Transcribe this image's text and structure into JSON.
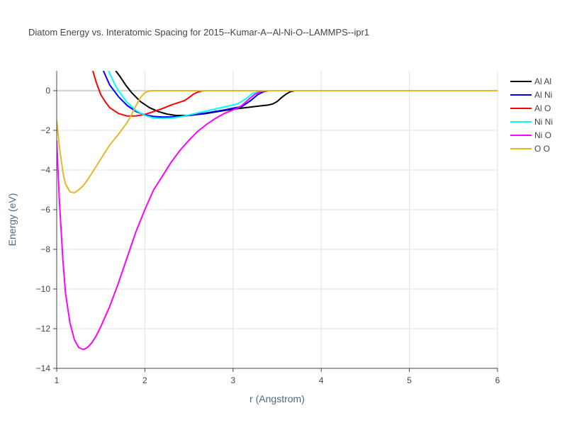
{
  "chart_data": {
    "type": "line",
    "title": "Diatom Energy vs. Interatomic Spacing for 2015--Kumar-A--Al-Ni-O--LAMMPS--ipr1",
    "xlabel": "r (Angstrom)",
    "ylabel": "Energy (eV)",
    "xlim": [
      1,
      6
    ],
    "ylim": [
      -14,
      1
    ],
    "xticks": [
      1,
      2,
      3,
      4,
      5,
      6
    ],
    "yticks": [
      0,
      -2,
      -4,
      -6,
      -8,
      -10,
      -12,
      -14
    ],
    "ytick_labels": [
      "0",
      "−2",
      "−4",
      "−6",
      "−8",
      "−10",
      "−12",
      "−14"
    ],
    "grid": true,
    "legend_position": "right",
    "series": [
      {
        "name": "Al Al",
        "color": "#000000",
        "x": [
          1.67,
          1.72,
          1.78,
          1.85,
          1.95,
          2.05,
          2.15,
          2.25,
          2.35,
          2.5,
          2.7,
          2.9,
          3.1,
          3.3,
          3.4,
          3.45,
          3.5,
          3.55,
          3.6,
          3.65,
          3.7,
          4.0,
          6.0
        ],
        "y": [
          1.0,
          0.7,
          0.3,
          -0.1,
          -0.55,
          -0.85,
          -1.05,
          -1.18,
          -1.25,
          -1.25,
          -1.15,
          -1.0,
          -0.88,
          -0.77,
          -0.72,
          -0.67,
          -0.55,
          -0.35,
          -0.18,
          -0.05,
          0.0,
          0.0,
          0.0
        ]
      },
      {
        "name": "Al Ni",
        "color": "#0000ff",
        "x": [
          1.53,
          1.6,
          1.7,
          1.8,
          1.9,
          2.0,
          2.1,
          2.2,
          2.3,
          2.4,
          2.5,
          2.7,
          2.9,
          3.1,
          3.2,
          3.28,
          3.35,
          3.4,
          4.0,
          6.0
        ],
        "y": [
          1.0,
          0.3,
          -0.3,
          -0.75,
          -1.05,
          -1.22,
          -1.3,
          -1.33,
          -1.32,
          -1.3,
          -1.25,
          -1.12,
          -0.97,
          -0.8,
          -0.5,
          -0.2,
          -0.05,
          0.0,
          0.0,
          0.0
        ]
      },
      {
        "name": "Al O",
        "color": "#ff0000",
        "x": [
          1.41,
          1.45,
          1.5,
          1.55,
          1.6,
          1.7,
          1.8,
          1.9,
          2.0,
          2.1,
          2.2,
          2.3,
          2.45,
          2.5,
          2.55,
          2.6,
          2.65,
          2.7,
          3.0,
          6.0
        ],
        "y": [
          1.0,
          0.4,
          -0.2,
          -0.55,
          -0.85,
          -1.15,
          -1.28,
          -1.27,
          -1.2,
          -1.05,
          -0.9,
          -0.72,
          -0.5,
          -0.35,
          -0.18,
          -0.07,
          -0.01,
          0.0,
          0.0,
          0.0
        ]
      },
      {
        "name": "Ni Ni",
        "color": "#00ffff",
        "x": [
          1.59,
          1.65,
          1.7,
          1.8,
          1.9,
          2.0,
          2.1,
          2.2,
          2.3,
          2.4,
          2.5,
          2.7,
          2.9,
          3.05,
          3.15,
          3.22,
          3.3,
          3.35,
          3.4,
          4.0,
          6.0
        ],
        "y": [
          1.0,
          0.4,
          0.0,
          -0.6,
          -1.0,
          -1.25,
          -1.38,
          -1.4,
          -1.38,
          -1.32,
          -1.22,
          -1.02,
          -0.82,
          -0.67,
          -0.4,
          -0.15,
          -0.02,
          0.0,
          0.0,
          0.0,
          0.0
        ]
      },
      {
        "name": "Ni O",
        "color": "#ff00ff",
        "x": [
          1.0,
          1.03,
          1.07,
          1.1,
          1.15,
          1.2,
          1.25,
          1.3,
          1.33,
          1.36,
          1.4,
          1.45,
          1.5,
          1.6,
          1.7,
          1.8,
          1.9,
          2.0,
          2.1,
          2.2,
          2.3,
          2.4,
          2.5,
          2.6,
          2.7,
          2.8,
          2.9,
          3.0,
          3.05,
          3.1,
          3.15,
          3.2,
          3.25,
          3.3,
          3.35,
          3.4,
          4.0,
          6.0
        ],
        "y": [
          -2.5,
          -5.5,
          -8.5,
          -10.2,
          -11.7,
          -12.55,
          -12.95,
          -13.05,
          -13.0,
          -12.9,
          -12.7,
          -12.35,
          -11.9,
          -10.9,
          -9.7,
          -8.4,
          -7.1,
          -6.0,
          -5.0,
          -4.3,
          -3.6,
          -3.0,
          -2.5,
          -2.05,
          -1.7,
          -1.4,
          -1.15,
          -0.97,
          -0.88,
          -0.75,
          -0.55,
          -0.35,
          -0.18,
          -0.07,
          -0.02,
          0.0,
          0.0,
          0.0
        ]
      },
      {
        "name": "O O",
        "color": "#e6b823",
        "x": [
          1.0,
          1.03,
          1.07,
          1.1,
          1.15,
          1.2,
          1.25,
          1.3,
          1.35,
          1.4,
          1.5,
          1.6,
          1.7,
          1.8,
          1.85,
          1.9,
          1.95,
          2.0,
          2.05,
          2.1,
          2.2,
          3.0,
          6.0
        ],
        "y": [
          -1.5,
          -2.8,
          -4.1,
          -4.7,
          -5.1,
          -5.15,
          -5.0,
          -4.8,
          -4.5,
          -4.15,
          -3.45,
          -2.75,
          -2.2,
          -1.6,
          -1.2,
          -0.75,
          -0.35,
          -0.1,
          -0.02,
          0.0,
          0.0,
          0.0,
          0.0
        ]
      }
    ]
  }
}
